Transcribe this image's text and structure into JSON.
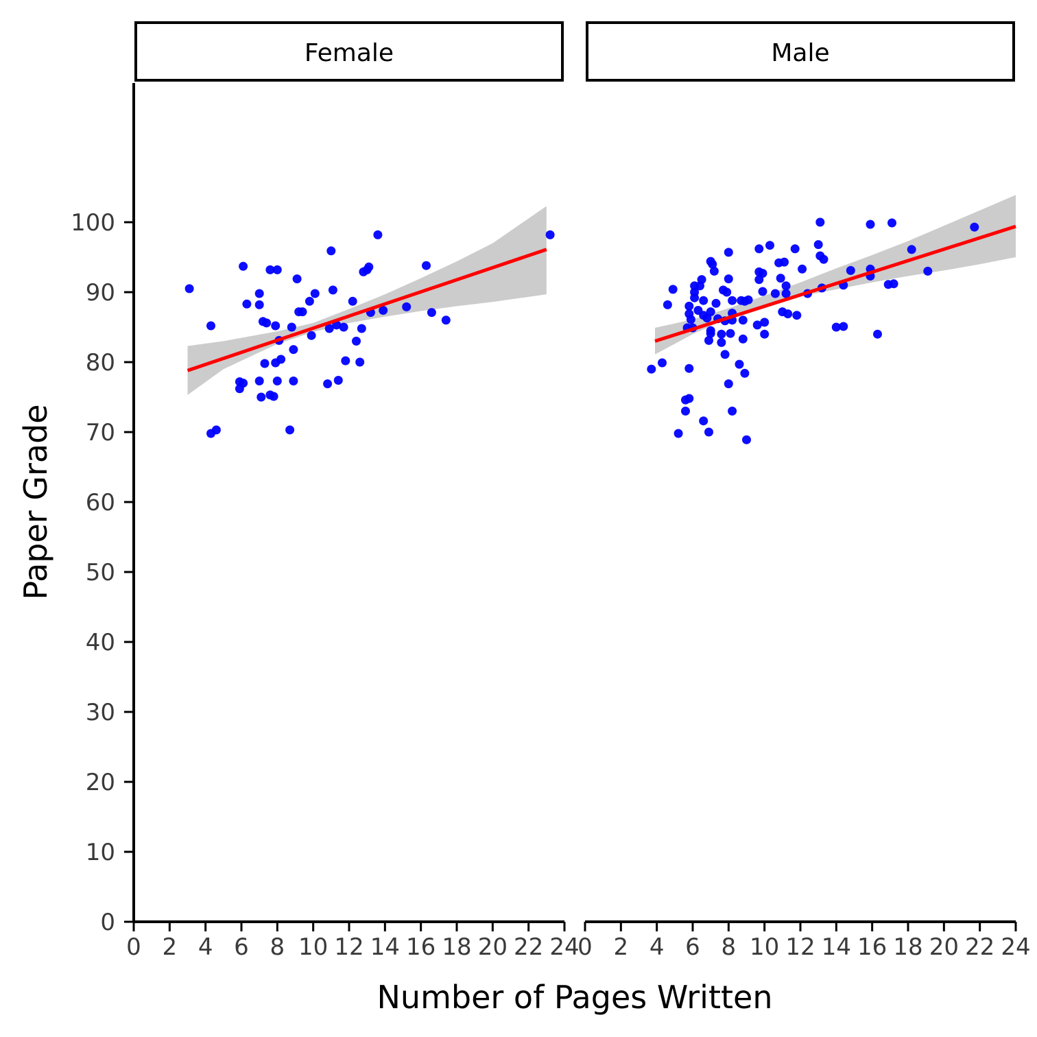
{
  "chart_data": {
    "type": "scatter",
    "xlabel": "Number of Pages Written",
    "ylabel": "Paper Grade",
    "xlim": [
      0,
      24
    ],
    "ylim": [
      0,
      120
    ],
    "x_ticks": [
      "0",
      "2",
      "4",
      "6",
      "8",
      "10",
      "12",
      "14",
      "16",
      "18",
      "20",
      "22",
      "24"
    ],
    "y_ticks": [
      "0",
      "10",
      "20",
      "30",
      "40",
      "50",
      "60",
      "70",
      "80",
      "90",
      "100"
    ],
    "grid": false,
    "colors": {
      "points": "#0000ff",
      "fit_line": "#ff0000",
      "confidence_band": "#cccccc"
    },
    "panels": [
      {
        "label": "Female",
        "fit": {
          "x": [
            3.0,
            23.0
          ],
          "y": [
            78.8,
            96.1
          ]
        },
        "band": {
          "x": [
            3.0,
            5.0,
            8.0,
            10.0,
            12.0,
            14.0,
            16.0,
            18.0,
            20.0,
            23.0
          ],
          "lower": [
            75.3,
            79.0,
            82.6,
            84.3,
            85.6,
            86.5,
            87.3,
            88.0,
            88.6,
            89.7
          ],
          "upper": [
            82.3,
            83.0,
            84.4,
            85.6,
            87.6,
            89.7,
            92.0,
            94.4,
            97.0,
            102.3
          ]
        },
        "points": [
          [
            3.1,
            90.5
          ],
          [
            4.3,
            85.2
          ],
          [
            4.3,
            69.8
          ],
          [
            4.6,
            70.3
          ],
          [
            5.9,
            77.2
          ],
          [
            5.9,
            76.2
          ],
          [
            6.1,
            93.7
          ],
          [
            6.1,
            77.0
          ],
          [
            6.3,
            88.3
          ],
          [
            7.0,
            89.8
          ],
          [
            7.0,
            88.2
          ],
          [
            7.0,
            77.3
          ],
          [
            7.1,
            75.0
          ],
          [
            7.2,
            85.8
          ],
          [
            7.3,
            79.8
          ],
          [
            7.4,
            85.6
          ],
          [
            7.6,
            75.3
          ],
          [
            7.6,
            93.2
          ],
          [
            7.8,
            75.1
          ],
          [
            7.9,
            85.2
          ],
          [
            7.9,
            79.9
          ],
          [
            8.0,
            93.2
          ],
          [
            8.0,
            77.3
          ],
          [
            8.1,
            83.1
          ],
          [
            8.2,
            80.4
          ],
          [
            8.7,
            70.3
          ],
          [
            8.8,
            85.0
          ],
          [
            8.9,
            81.8
          ],
          [
            8.9,
            77.3
          ],
          [
            9.1,
            91.9
          ],
          [
            9.2,
            87.2
          ],
          [
            9.4,
            87.2
          ],
          [
            9.8,
            88.7
          ],
          [
            9.9,
            83.8
          ],
          [
            10.1,
            89.8
          ],
          [
            10.8,
            76.9
          ],
          [
            10.9,
            84.8
          ],
          [
            11.0,
            95.9
          ],
          [
            11.1,
            90.3
          ],
          [
            11.3,
            85.3
          ],
          [
            11.4,
            77.4
          ],
          [
            11.7,
            85.0
          ],
          [
            11.8,
            80.2
          ],
          [
            12.2,
            88.7
          ],
          [
            12.4,
            83.0
          ],
          [
            12.6,
            80.0
          ],
          [
            12.7,
            84.8
          ],
          [
            12.8,
            92.9
          ],
          [
            13.0,
            93.2
          ],
          [
            13.1,
            93.6
          ],
          [
            13.2,
            87.1
          ],
          [
            13.6,
            98.2
          ],
          [
            13.9,
            87.4
          ],
          [
            15.2,
            87.9
          ],
          [
            16.3,
            93.8
          ],
          [
            16.6,
            87.1
          ],
          [
            17.4,
            86.0
          ],
          [
            23.2,
            98.2
          ]
        ]
      },
      {
        "label": "Male",
        "fit": {
          "x": [
            3.9,
            24.0
          ],
          "y": [
            83.0,
            99.4
          ]
        },
        "band": {
          "x": [
            3.9,
            6.0,
            8.0,
            10.0,
            12.0,
            14.0,
            16.0,
            18.0,
            20.0,
            22.0,
            24.0
          ],
          "lower": [
            81.1,
            84.0,
            86.3,
            88.0,
            89.4,
            90.4,
            91.4,
            92.3,
            93.1,
            94.0,
            95.0
          ],
          "upper": [
            84.9,
            86.1,
            87.7,
            89.5,
            91.4,
            93.4,
            95.3,
            97.3,
            99.5,
            101.7,
            103.9
          ]
        },
        "points": [
          [
            3.7,
            79.0
          ],
          [
            4.3,
            79.9
          ],
          [
            4.6,
            88.2
          ],
          [
            4.9,
            90.4
          ],
          [
            5.2,
            69.8
          ],
          [
            5.6,
            74.6
          ],
          [
            5.6,
            73.0
          ],
          [
            5.7,
            84.9
          ],
          [
            5.8,
            79.1
          ],
          [
            5.8,
            74.8
          ],
          [
            5.8,
            88.0
          ],
          [
            5.8,
            86.9
          ],
          [
            5.9,
            86.1
          ],
          [
            6.0,
            84.9
          ],
          [
            6.1,
            90.9
          ],
          [
            6.1,
            90.0
          ],
          [
            6.1,
            89.2
          ],
          [
            6.3,
            87.4
          ],
          [
            6.4,
            90.9
          ],
          [
            6.5,
            91.8
          ],
          [
            6.6,
            88.8
          ],
          [
            6.6,
            86.7
          ],
          [
            6.6,
            71.6
          ],
          [
            6.8,
            86.3
          ],
          [
            6.9,
            83.1
          ],
          [
            6.9,
            70.0
          ],
          [
            7.0,
            94.4
          ],
          [
            7.0,
            87.2
          ],
          [
            7.0,
            84.5
          ],
          [
            7.0,
            84.1
          ],
          [
            7.1,
            94.0
          ],
          [
            7.2,
            93.0
          ],
          [
            7.3,
            88.4
          ],
          [
            7.4,
            86.2
          ],
          [
            7.6,
            84.0
          ],
          [
            7.6,
            82.8
          ],
          [
            7.7,
            90.3
          ],
          [
            7.8,
            81.1
          ],
          [
            7.8,
            85.9
          ],
          [
            7.9,
            90.0
          ],
          [
            8.0,
            95.7
          ],
          [
            8.0,
            91.9
          ],
          [
            8.0,
            76.9
          ],
          [
            8.1,
            84.1
          ],
          [
            8.2,
            73.0
          ],
          [
            8.2,
            86.0
          ],
          [
            8.2,
            87.0
          ],
          [
            8.2,
            88.8
          ],
          [
            8.6,
            79.7
          ],
          [
            8.7,
            88.8
          ],
          [
            8.8,
            86.0
          ],
          [
            8.8,
            83.3
          ],
          [
            8.9,
            78.4
          ],
          [
            8.9,
            88.7
          ],
          [
            9.0,
            68.9
          ],
          [
            9.1,
            88.9
          ],
          [
            9.6,
            85.3
          ],
          [
            9.7,
            96.2
          ],
          [
            9.7,
            91.8
          ],
          [
            9.7,
            92.9
          ],
          [
            9.9,
            90.1
          ],
          [
            9.9,
            92.7
          ],
          [
            10.0,
            85.7
          ],
          [
            10.0,
            84.0
          ],
          [
            10.3,
            96.7
          ],
          [
            10.6,
            89.8
          ],
          [
            10.8,
            94.2
          ],
          [
            10.9,
            92.0
          ],
          [
            11.0,
            87.2
          ],
          [
            11.1,
            94.3
          ],
          [
            11.2,
            90.9
          ],
          [
            11.2,
            89.8
          ],
          [
            11.3,
            86.9
          ],
          [
            11.7,
            96.2
          ],
          [
            11.8,
            86.7
          ],
          [
            12.1,
            93.3
          ],
          [
            12.4,
            89.8
          ],
          [
            13.0,
            96.8
          ],
          [
            13.1,
            100.0
          ],
          [
            13.1,
            95.2
          ],
          [
            13.2,
            90.6
          ],
          [
            13.3,
            94.7
          ],
          [
            14.0,
            85.0
          ],
          [
            14.4,
            85.1
          ],
          [
            14.4,
            91.0
          ],
          [
            14.8,
            93.1
          ],
          [
            15.9,
            99.7
          ],
          [
            15.9,
            92.3
          ],
          [
            15.9,
            93.3
          ],
          [
            16.3,
            84.0
          ],
          [
            16.9,
            91.1
          ],
          [
            17.1,
            99.9
          ],
          [
            17.2,
            91.2
          ],
          [
            18.2,
            96.1
          ],
          [
            19.1,
            93.0
          ],
          [
            21.7,
            99.3
          ]
        ]
      }
    ]
  }
}
